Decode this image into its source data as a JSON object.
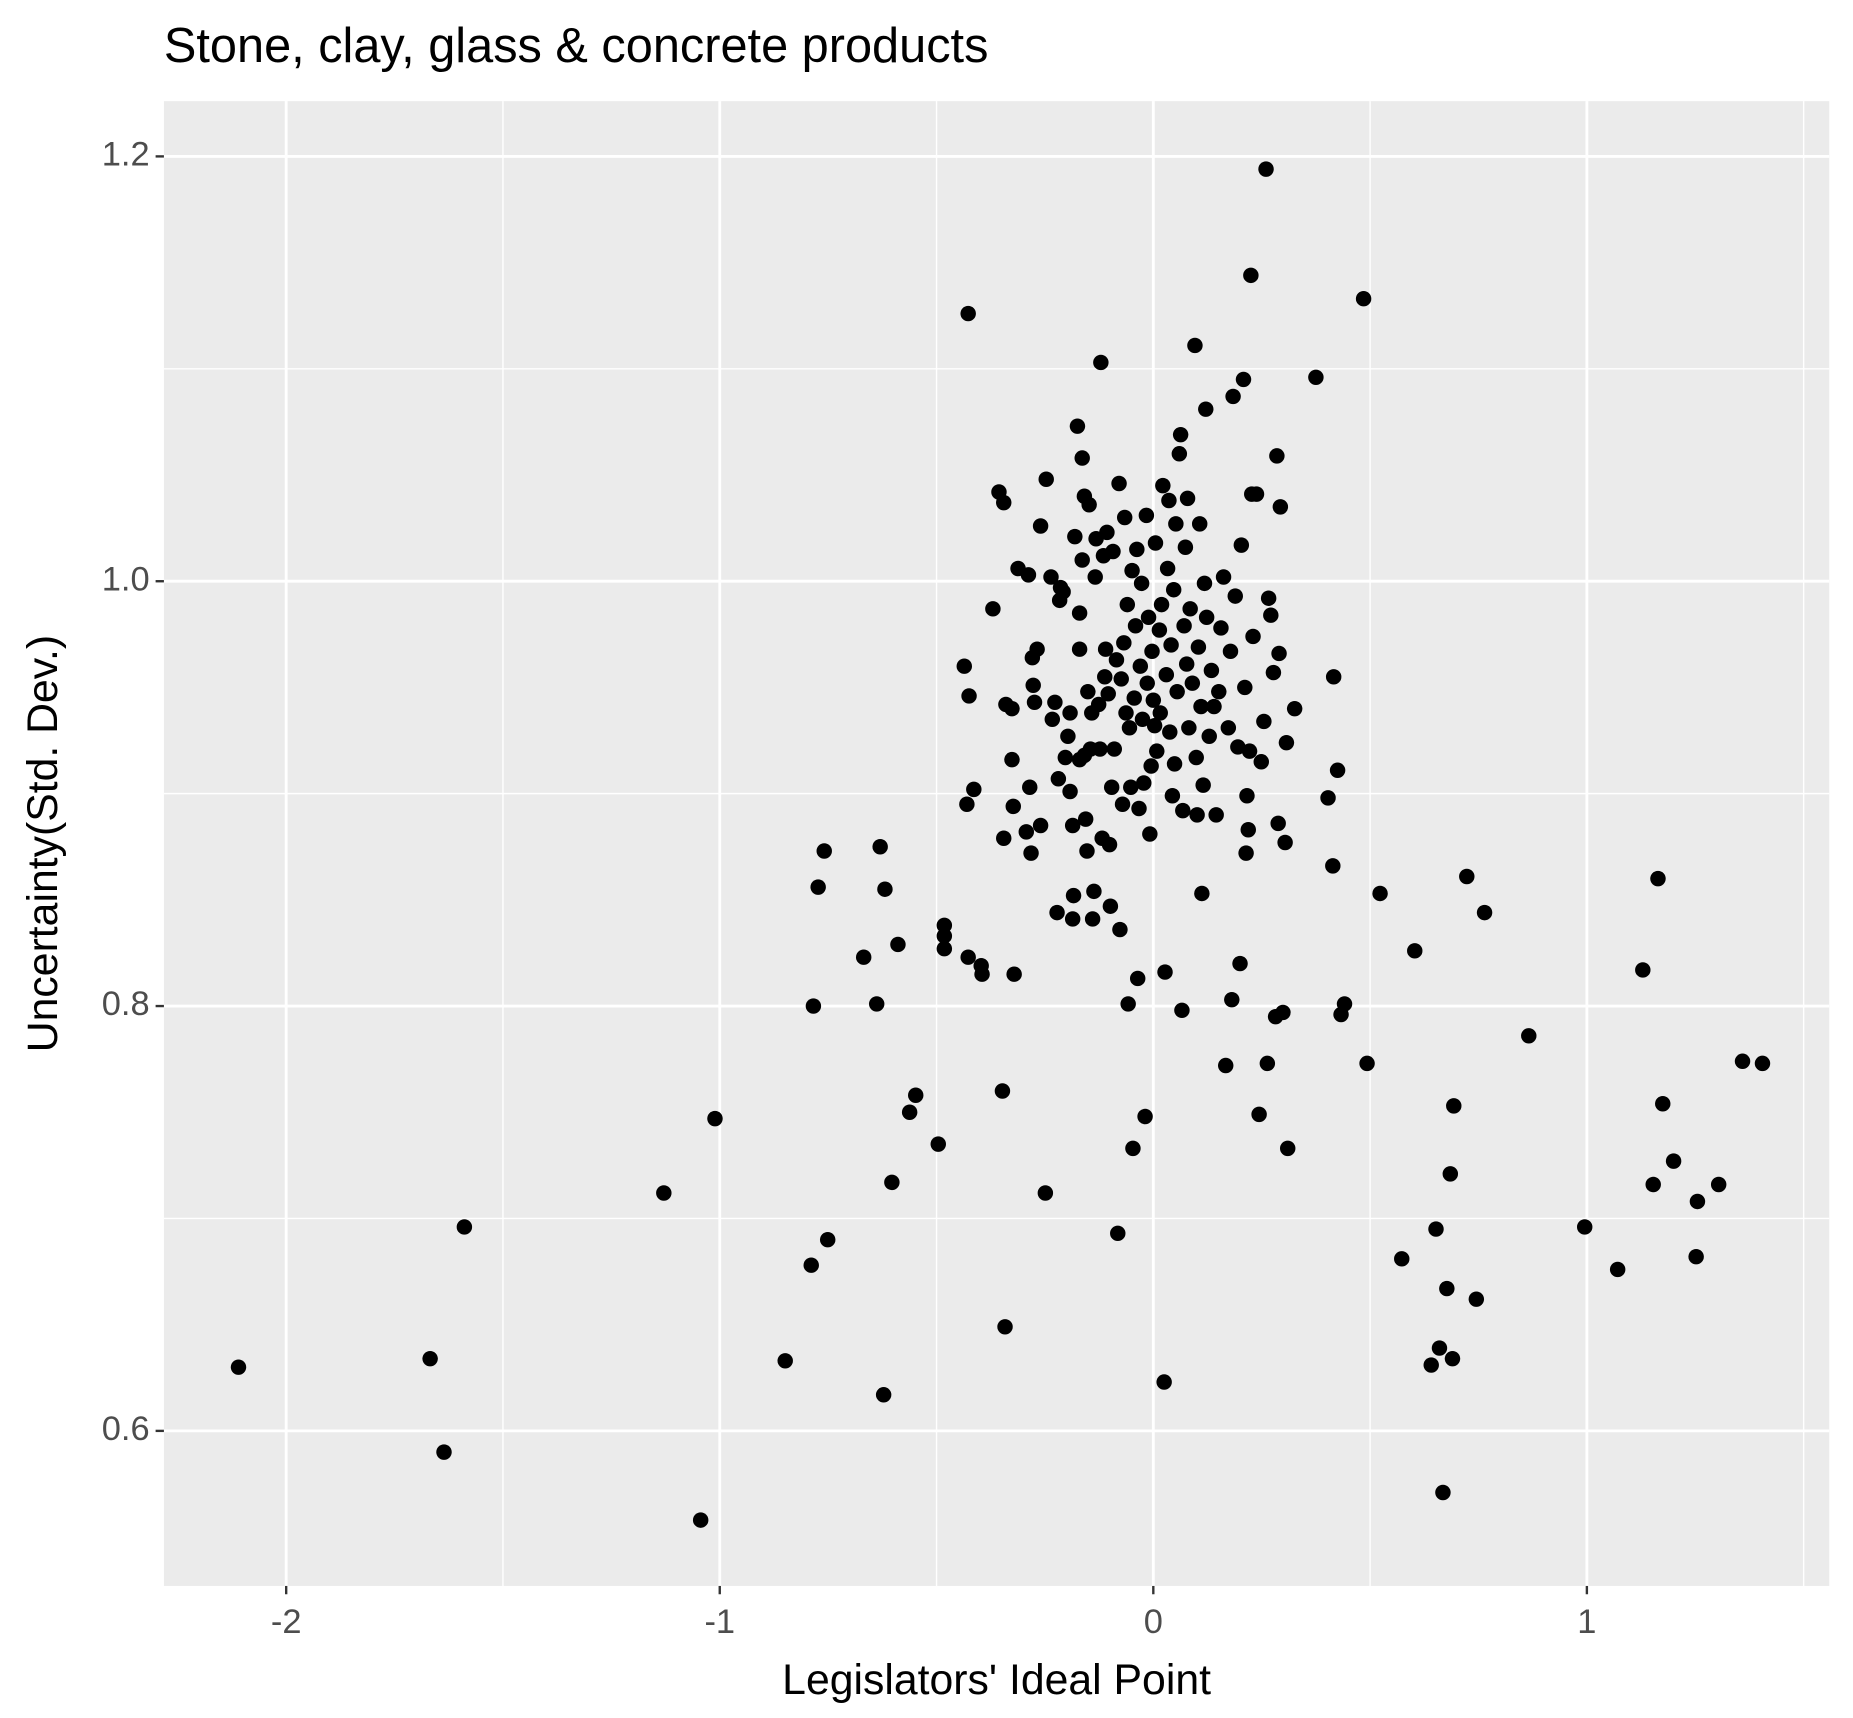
{
  "chart_data": {
    "type": "scatter",
    "title": "Stone, clay, glass & concrete products",
    "x_label": "Legislators' Ideal Point",
    "y_label": "Uncertainty(Std. Dev.)",
    "color": "#000000",
    "grid": true,
    "xlim": [
      -2.282,
      1.559
    ],
    "ylim": [
      0.527,
      1.226
    ],
    "xticks": [
      -2,
      -1,
      0,
      1
    ],
    "yticks": [
      0.6,
      0.8,
      {
        "value": 1,
        "label": "1.0"
      },
      1.2
    ],
    "x_minor_grid": [
      -1.5,
      -0.5,
      0.5,
      1.5
    ],
    "y_minor_grid": [
      0.7,
      0.9,
      1.1
    ],
    "x": [
      -2.11,
      -1.668,
      -1.636,
      -1.589,
      -1.129,
      -1.044,
      -1.011,
      -0.849,
      -0.789,
      -0.784,
      -0.773,
      -0.759,
      -0.751,
      -0.668,
      -0.638,
      -0.63,
      -0.619,
      -0.622,
      -0.603,
      -0.589,
      -0.562,
      -0.548,
      -0.496,
      -0.482,
      -0.482,
      -0.482,
      -0.427,
      -0.436,
      -0.43,
      -0.425,
      -0.414,
      -0.427,
      -0.397,
      -0.395,
      -0.37,
      -0.356,
      -0.345,
      -0.348,
      -0.345,
      -0.342,
      -0.34,
      -0.326,
      -0.326,
      -0.323,
      -0.321,
      -0.312,
      -0.293,
      -0.288,
      -0.285,
      -0.282,
      -0.279,
      -0.277,
      -0.274,
      -0.268,
      -0.26,
      -0.26,
      -0.249,
      -0.247,
      -0.236,
      -0.233,
      -0.227,
      -0.222,
      -0.219,
      -0.216,
      -0.214,
      -0.208,
      -0.203,
      -0.197,
      -0.192,
      -0.192,
      -0.186,
      -0.184,
      -0.186,
      -0.181,
      -0.175,
      -0.17,
      -0.17,
      -0.17,
      -0.164,
      -0.164,
      -0.159,
      -0.159,
      -0.156,
      -0.153,
      -0.151,
      -0.148,
      -0.145,
      -0.142,
      -0.14,
      -0.137,
      -0.134,
      -0.132,
      -0.126,
      -0.123,
      -0.121,
      -0.118,
      -0.115,
      -0.112,
      -0.11,
      -0.107,
      -0.104,
      -0.101,
      -0.099,
      -0.096,
      -0.093,
      -0.09,
      -0.085,
      -0.082,
      -0.079,
      -0.077,
      -0.074,
      -0.071,
      -0.068,
      -0.066,
      -0.063,
      -0.06,
      -0.058,
      -0.055,
      -0.052,
      -0.049,
      -0.047,
      -0.044,
      -0.041,
      -0.038,
      -0.036,
      -0.033,
      -0.03,
      -0.027,
      -0.025,
      -0.022,
      -0.019,
      -0.016,
      -0.014,
      -0.011,
      -0.008,
      -0.005,
      -0.003,
      0,
      0.003,
      0.005,
      0.008,
      0.014,
      0.016,
      0.019,
      0.022,
      0.025,
      0.027,
      0.03,
      0.033,
      0.036,
      0.038,
      0.041,
      0.044,
      0.047,
      0.049,
      0.052,
      0.055,
      0.06,
      0.063,
      0.066,
      0.068,
      0.071,
      0.074,
      0.077,
      0.079,
      0.082,
      0.085,
      0.09,
      0.096,
      0.099,
      0.101,
      0.104,
      0.107,
      0.11,
      0.112,
      0.115,
      0.118,
      0.121,
      0.123,
      0.129,
      0.134,
      0.14,
      0.145,
      0.151,
      0.156,
      0.162,
      0.167,
      0.173,
      0.178,
      0.181,
      0.184,
      0.189,
      0.195,
      0.2,
      0.203,
      0.208,
      0.211,
      0.214,
      0.216,
      0.219,
      0.222,
      0.225,
      0.227,
      0.23,
      0.238,
      0.244,
      0.249,
      0.255,
      0.26,
      0.263,
      0.266,
      0.271,
      0.277,
      0.282,
      0.285,
      0.288,
      0.29,
      0.293,
      0.299,
      0.304,
      0.307,
      0.31,
      0.326,
      0.375,
      0.403,
      0.414,
      0.416,
      0.425,
      0.433,
      0.441,
      0.485,
      0.493,
      0.523,
      0.573,
      0.603,
      0.641,
      0.652,
      0.66,
      0.668,
      0.677,
      0.685,
      0.69,
      0.693,
      0.723,
      0.745,
      0.764,
      0.866,
      0.995,
      1.071,
      1.129,
      1.153,
      1.164,
      1.175,
      1.2,
      1.252,
      1.255,
      1.304,
      1.359,
      1.405
    ],
    "y": [
      0.63,
      0.634,
      0.59,
      0.696,
      0.712,
      0.558,
      0.747,
      0.633,
      0.678,
      0.8,
      0.856,
      0.873,
      0.69,
      0.823,
      0.801,
      0.875,
      0.855,
      0.617,
      0.717,
      0.829,
      0.75,
      0.758,
      0.735,
      0.838,
      0.833,
      0.827,
      1.126,
      0.96,
      0.895,
      0.946,
      0.902,
      0.823,
      0.819,
      0.815,
      0.987,
      1.042,
      1.037,
      0.76,
      0.879,
      0.649,
      0.942,
      0.94,
      0.916,
      0.894,
      0.815,
      1.006,
      0.882,
      1.003,
      0.903,
      0.872,
      0.964,
      0.951,
      0.943,
      0.968,
      1.026,
      0.885,
      0.712,
      1.048,
      1.002,
      0.935,
      0.943,
      0.844,
      0.907,
      0.991,
      0.997,
      0.995,
      0.917,
      0.927,
      0.938,
      0.901,
      0.841,
      0.852,
      0.885,
      1.021,
      1.073,
      0.968,
      0.985,
      0.916,
      1.058,
      1.01,
      1.04,
      0.918,
      0.888,
      0.873,
      0.948,
      1.036,
      0.921,
      0.938,
      0.841,
      0.854,
      1.002,
      1.02,
      0.942,
      0.921,
      1.103,
      0.879,
      1.012,
      0.955,
      0.968,
      1.023,
      0.947,
      0.876,
      0.847,
      0.903,
      1.014,
      0.921,
      0.963,
      0.693,
      1.046,
      0.836,
      0.954,
      0.895,
      0.971,
      1.03,
      0.938,
      0.989,
      0.801,
      0.931,
      0.903,
      1.005,
      0.733,
      0.945,
      0.979,
      1.015,
      0.813,
      0.893,
      0.96,
      0.999,
      0.935,
      0.905,
      0.748,
      1.031,
      0.952,
      0.983,
      0.881,
      0.913,
      0.967,
      0.944,
      0.932,
      1.018,
      0.92,
      0.977,
      0.938,
      0.989,
      1.045,
      0.623,
      0.816,
      0.956,
      1.006,
      1.038,
      0.929,
      0.97,
      0.899,
      0.996,
      0.914,
      1.027,
      0.948,
      1.06,
      1.069,
      0.798,
      0.892,
      0.979,
      1.016,
      0.961,
      1.039,
      0.931,
      0.987,
      0.952,
      1.111,
      0.917,
      0.89,
      0.969,
      1.027,
      0.941,
      0.853,
      0.904,
      0.999,
      1.081,
      0.983,
      0.927,
      0.958,
      0.941,
      0.89,
      0.948,
      0.978,
      1.002,
      0.772,
      0.931,
      0.967,
      0.803,
      1.087,
      0.993,
      0.922,
      0.82,
      1.017,
      1.095,
      0.95,
      0.872,
      0.899,
      0.883,
      0.92,
      1.144,
      1.041,
      0.974,
      1.041,
      0.749,
      0.915,
      0.934,
      1.194,
      0.773,
      0.992,
      0.984,
      0.957,
      0.795,
      1.059,
      0.886,
      0.966,
      1.035,
      0.797,
      0.877,
      0.924,
      0.733,
      0.94,
      1.096,
      0.898,
      0.866,
      0.955,
      0.911,
      0.796,
      0.801,
      1.133,
      0.773,
      0.853,
      0.681,
      0.826,
      0.631,
      0.695,
      0.639,
      0.571,
      0.667,
      0.721,
      0.634,
      0.753,
      0.861,
      0.662,
      0.844,
      0.786,
      0.696,
      0.676,
      0.817,
      0.716,
      0.86,
      0.754,
      0.727,
      0.682,
      0.708,
      0.716,
      0.774,
      0.773
    ]
  }
}
